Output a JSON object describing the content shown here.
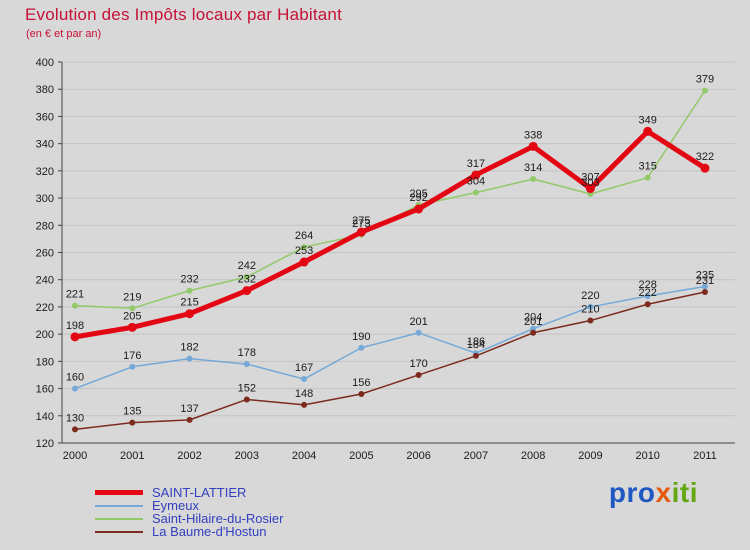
{
  "title": "Evolution des Impôts locaux par Habitant",
  "subtitle": "(en € et par an)",
  "colors": {
    "background": "#d8d8d8",
    "title": "#c51236",
    "grid": "#c3c3c3",
    "axis": "#444444",
    "value_label": "#1b1b1b",
    "legend_text": "#3340c0"
  },
  "chart_data": {
    "type": "line",
    "x": [
      "2000",
      "2001",
      "2002",
      "2003",
      "2004",
      "2005",
      "2006",
      "2007",
      "2008",
      "2009",
      "2010",
      "2011"
    ],
    "ylim": [
      120,
      400
    ],
    "ytick_step": 20,
    "grid": true,
    "legend_position": "bottom-left",
    "series": [
      {
        "name": "SAINT-LATTIER",
        "color": "#e30613",
        "line_width": 5,
        "values": [
          198,
          205,
          215,
          232,
          253,
          275,
          292,
          317,
          338,
          307,
          349,
          322
        ]
      },
      {
        "name": "Eymeux",
        "color": "#74a9d8",
        "line_width": 1.5,
        "values": [
          160,
          176,
          182,
          178,
          167,
          190,
          201,
          186,
          204,
          220,
          228,
          235
        ]
      },
      {
        "name": "Saint-Hilaire-du-Rosier",
        "color": "#92c969",
        "line_width": 1.5,
        "values": [
          221,
          219,
          232,
          242,
          264,
          273,
          295,
          304,
          314,
          303,
          315,
          379
        ]
      },
      {
        "name": "La Baume-d'Hostun",
        "color": "#7c2b1e",
        "line_width": 1.5,
        "values": [
          130,
          135,
          137,
          152,
          148,
          156,
          170,
          184,
          201,
          210,
          222,
          231
        ]
      }
    ]
  },
  "logo": {
    "pro": "pro",
    "x": "x",
    "iti": "iti",
    "pro_color": "#1f57c3",
    "x_color": "#e4590b",
    "iti_color": "#63a813"
  }
}
